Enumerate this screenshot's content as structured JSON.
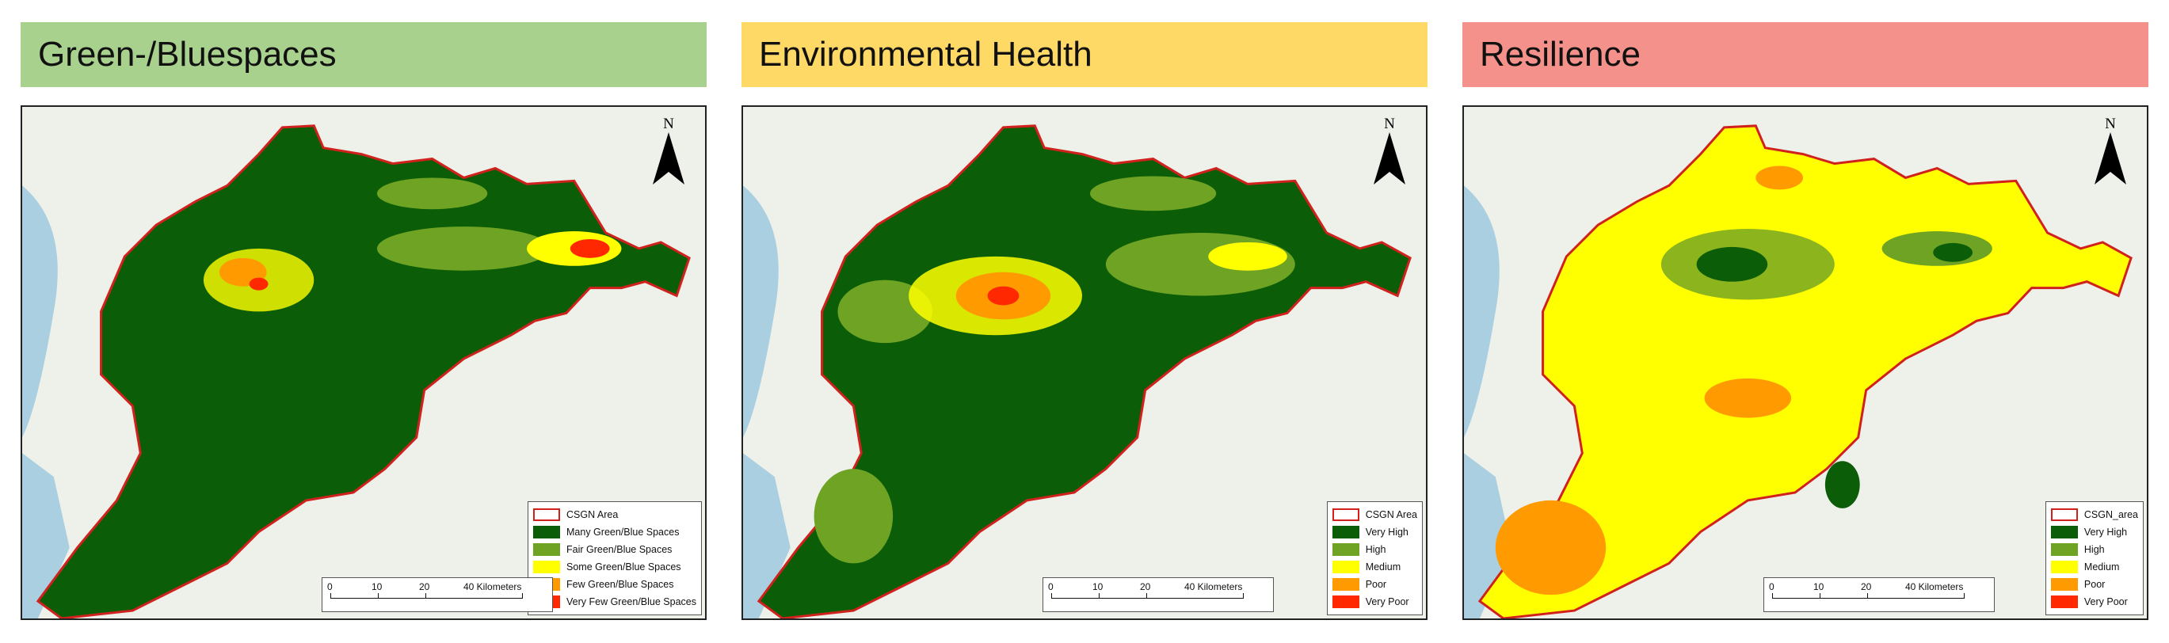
{
  "colors": {
    "very_high": "#0b5e07",
    "high": "#6fa324",
    "medium": "#ffff00",
    "poor": "#ff9a00",
    "very_poor": "#ff2800",
    "boundary": "#d0211d",
    "water": "#aacfe0",
    "land": "#eef0ea"
  },
  "panels": [
    {
      "title": "Green-/Bluespaces",
      "title_color": "#a9d18e",
      "legend": [
        {
          "label": "CSGN Area",
          "color": "outline"
        },
        {
          "label": "Many Green/Blue Spaces",
          "color": "#0b5e07"
        },
        {
          "label": "Fair Green/Blue Spaces",
          "color": "#6fa324"
        },
        {
          "label": "Some Green/Blue Spaces",
          "color": "#ffff00"
        },
        {
          "label": "Few Green/Blue Spaces",
          "color": "#ff9a00"
        },
        {
          "label": "Very Few Green/Blue Spaces",
          "color": "#ff2800"
        }
      ]
    },
    {
      "title": "Environmental Health",
      "title_color": "#ffd966",
      "legend": [
        {
          "label": "CSGN Area",
          "color": "outline"
        },
        {
          "label": "Very High",
          "color": "#0b5e07"
        },
        {
          "label": "High",
          "color": "#6fa324"
        },
        {
          "label": "Medium",
          "color": "#ffff00"
        },
        {
          "label": "Poor",
          "color": "#ff9a00"
        },
        {
          "label": "Very Poor",
          "color": "#ff2800"
        }
      ]
    },
    {
      "title": "Resilience",
      "title_color": "#f4918a",
      "legend": [
        {
          "label": "CSGN_area",
          "color": "outline"
        },
        {
          "label": "Very High",
          "color": "#0b5e07"
        },
        {
          "label": "High",
          "color": "#6fa324"
        },
        {
          "label": "Medium",
          "color": "#ffff00"
        },
        {
          "label": "Poor",
          "color": "#ff9a00"
        },
        {
          "label": "Very Poor",
          "color": "#ff2800"
        }
      ]
    }
  ],
  "north_arrow_label": "N",
  "scale": {
    "ticks": [
      "0",
      "10",
      "20",
      "40"
    ],
    "unit_label": "40 Kilometers"
  }
}
